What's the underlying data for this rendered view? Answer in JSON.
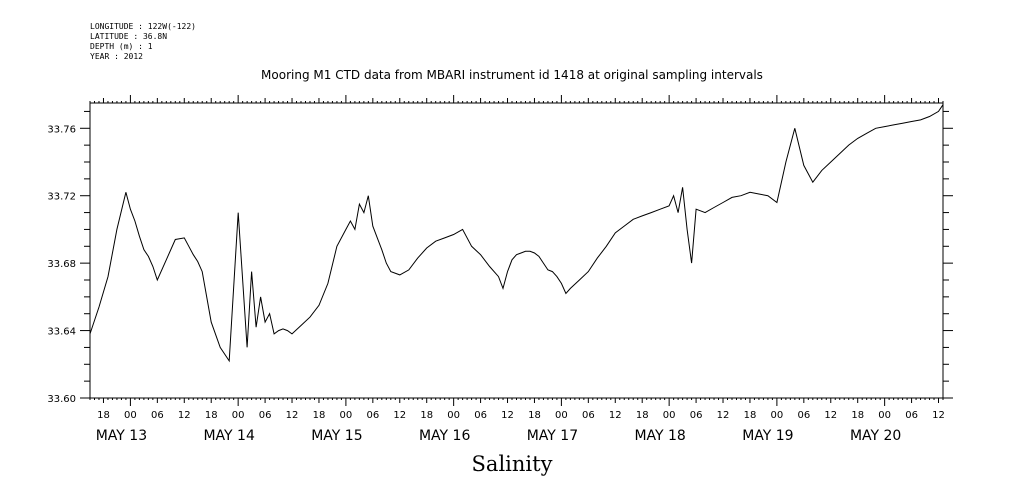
{
  "header": {
    "lines": [
      "LONGITUDE : 122W(-122)",
      "LATITUDE : 36.8N",
      "DEPTH (m) : 1",
      "YEAR : 2012"
    ]
  },
  "chart_data": {
    "type": "line",
    "title": "Mooring M1 CTD data from MBARI instrument id 1418 at original sampling intervals",
    "xlabel": "Salinity",
    "ylabel": "",
    "ylim": [
      33.6,
      33.775
    ],
    "yticks": [
      "33.60",
      "33.64",
      "33.68",
      "33.72",
      "33.76"
    ],
    "xlim_hours": [
      -9,
      181
    ],
    "hour_tick_labels": [
      "18",
      "00",
      "06",
      "12",
      "18",
      "00",
      "06",
      "12",
      "18",
      "00",
      "06",
      "12",
      "18",
      "00",
      "06",
      "12",
      "18",
      "00",
      "06",
      "12",
      "18",
      "00",
      "06",
      "12",
      "18",
      "00",
      "06",
      "12",
      "18",
      "00",
      "06",
      "12"
    ],
    "day_labels": [
      "MAY 13",
      "MAY 14",
      "MAY 15",
      "MAY 16",
      "MAY 17",
      "MAY 18",
      "MAY 19",
      "MAY 20"
    ],
    "grid": false,
    "series": [
      {
        "x": [
          -9,
          -7,
          -5,
          -3,
          -1,
          0,
          1,
          2,
          3,
          4,
          5,
          6,
          8,
          10,
          12,
          13,
          14,
          15,
          16,
          17,
          18,
          20,
          22,
          24,
          26,
          27,
          28,
          29,
          30,
          31,
          32,
          33,
          34,
          35,
          36,
          38,
          40,
          42,
          44,
          46,
          48,
          49,
          50,
          51,
          52,
          53,
          54,
          55,
          56,
          57,
          58,
          60,
          62,
          64,
          66,
          68,
          70,
          72,
          74,
          76,
          78,
          80,
          82,
          83,
          84,
          85,
          86,
          87,
          88,
          89,
          90,
          91,
          92,
          93,
          94,
          95,
          96,
          97,
          98,
          100,
          102,
          104,
          106,
          108,
          110,
          112,
          114,
          116,
          118,
          120,
          121,
          122,
          123,
          124,
          125,
          126,
          128,
          130,
          132,
          134,
          136,
          138,
          140,
          142,
          144,
          146,
          148,
          150,
          152,
          154,
          156,
          158,
          160,
          162,
          164,
          166,
          168,
          170,
          172,
          174,
          176,
          178,
          180,
          181
        ],
        "y": [
          33.638,
          33.654,
          33.672,
          33.7,
          33.722,
          33.712,
          33.705,
          33.696,
          33.688,
          33.684,
          33.678,
          33.67,
          33.682,
          33.694,
          33.695,
          33.69,
          33.685,
          33.681,
          33.675,
          33.66,
          33.645,
          33.63,
          33.622,
          33.71,
          33.63,
          33.675,
          33.642,
          33.66,
          33.645,
          33.65,
          33.638,
          33.64,
          33.641,
          33.64,
          33.638,
          33.643,
          33.648,
          33.655,
          33.668,
          33.69,
          33.7,
          33.705,
          33.7,
          33.715,
          33.71,
          33.72,
          33.702,
          33.695,
          33.688,
          33.68,
          33.675,
          33.673,
          33.676,
          33.683,
          33.689,
          33.693,
          33.695,
          33.697,
          33.7,
          33.69,
          33.685,
          33.678,
          33.672,
          33.665,
          33.675,
          33.682,
          33.685,
          33.686,
          33.687,
          33.687,
          33.686,
          33.684,
          33.68,
          33.676,
          33.675,
          33.672,
          33.668,
          33.662,
          33.665,
          33.67,
          33.675,
          33.683,
          33.69,
          33.698,
          33.702,
          33.706,
          33.708,
          33.71,
          33.712,
          33.714,
          33.72,
          33.71,
          33.725,
          33.7,
          33.68,
          33.712,
          33.71,
          33.713,
          33.716,
          33.719,
          33.72,
          33.722,
          33.721,
          33.72,
          33.716,
          33.74,
          33.76,
          33.738,
          33.728,
          33.735,
          33.74,
          33.745,
          33.75,
          33.754,
          33.757,
          33.76,
          33.761,
          33.762,
          33.763,
          33.764,
          33.765,
          33.767,
          33.77,
          33.774
        ]
      }
    ]
  }
}
